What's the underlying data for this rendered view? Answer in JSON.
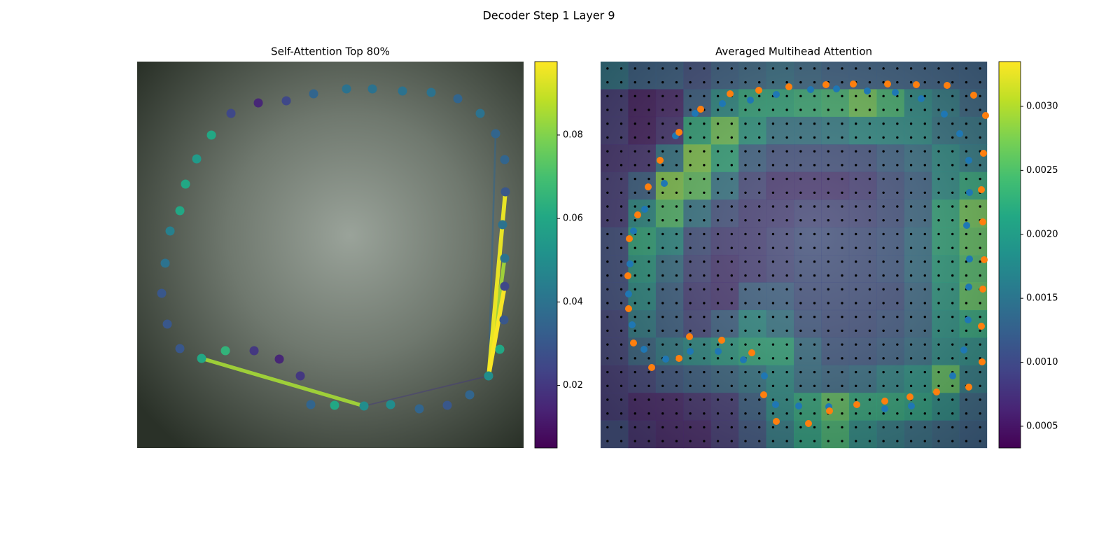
{
  "title": "Decoder Step 1 Layer 9",
  "chart_data": [
    {
      "type": "scatter",
      "title": "Self-Attention Top 80%",
      "xlim": [
        0,
        552
      ],
      "ylim": [
        552,
        0
      ],
      "x": [
        106,
        134,
        173,
        213,
        252,
        299,
        336,
        379,
        420,
        458,
        490,
        512,
        525,
        526,
        522,
        525,
        525,
        524,
        518,
        502,
        475,
        443,
        403,
        362,
        324,
        282,
        248,
        233,
        203,
        167,
        126,
        92,
        61,
        43,
        35,
        40,
        47,
        61,
        69,
        85
      ],
      "y": [
        105,
        74,
        59,
        56,
        46,
        39,
        39,
        42,
        44,
        53,
        74,
        103,
        140,
        186,
        233,
        281,
        321,
        369,
        411,
        449,
        476,
        491,
        496,
        490,
        492,
        491,
        490,
        449,
        425,
        413,
        413,
        424,
        410,
        375,
        331,
        288,
        242,
        213,
        175,
        139
      ],
      "values": [
        0.06,
        0.025,
        0.015,
        0.025,
        0.035,
        0.04,
        0.04,
        0.04,
        0.04,
        0.035,
        0.04,
        0.035,
        0.035,
        0.03,
        0.04,
        0.04,
        0.025,
        0.03,
        0.06,
        0.05,
        0.035,
        0.03,
        0.035,
        0.05,
        0.05,
        0.06,
        0.035,
        0.02,
        0.015,
        0.02,
        0.065,
        0.06,
        0.03,
        0.03,
        0.03,
        0.04,
        0.045,
        0.06,
        0.06,
        0.055
      ],
      "links": [
        {
          "x": [
            502,
            512
          ],
          "y": [
            449,
            103
          ],
          "value": 0.035
        },
        {
          "x": [
            324,
            502
          ],
          "y": [
            492,
            449
          ],
          "value": 0.02
        },
        {
          "x": [
            502,
            525
          ],
          "y": [
            449,
            281
          ],
          "value": 0.085
        },
        {
          "x": [
            92,
            324
          ],
          "y": [
            424,
            492
          ],
          "value": 0.085
        },
        {
          "x": [
            502,
            526
          ],
          "y": [
            449,
            186
          ],
          "value": 0.095
        },
        {
          "x": [
            502,
            525
          ],
          "y": [
            449,
            321
          ],
          "value": 0.097
        }
      ],
      "clim": [
        0.005,
        0.0976
      ],
      "cticks": [
        0.02,
        0.04,
        0.06,
        0.08
      ]
    },
    {
      "type": "heatmap",
      "title": "Averaged Multihead Attention",
      "xlim": [
        0,
        552
      ],
      "ylim": [
        552,
        0
      ],
      "z": [
        [
          0.0015,
          0.0012,
          0.0012,
          0.001,
          0.0012,
          0.0013,
          0.0014,
          0.0013,
          0.0012,
          0.0012,
          0.0012,
          0.0012,
          0.0012,
          0.0012
        ],
        [
          0.0008,
          0.0005,
          0.0006,
          0.0012,
          0.0018,
          0.0022,
          0.0022,
          0.0023,
          0.0024,
          0.0027,
          0.0024,
          0.0018,
          0.0016,
          0.0013
        ],
        [
          0.0008,
          0.0005,
          0.0007,
          0.0022,
          0.0027,
          0.002,
          0.0015,
          0.0015,
          0.0016,
          0.0018,
          0.0018,
          0.0018,
          0.0015,
          0.0015
        ],
        [
          0.0007,
          0.0007,
          0.0015,
          0.0028,
          0.0022,
          0.0012,
          0.001,
          0.001,
          0.001,
          0.001,
          0.0012,
          0.0014,
          0.0018,
          0.0016
        ],
        [
          0.0008,
          0.0012,
          0.0028,
          0.0026,
          0.0015,
          0.0009,
          0.0007,
          0.0007,
          0.0007,
          0.0008,
          0.001,
          0.0012,
          0.0018,
          0.0022
        ],
        [
          0.0008,
          0.0018,
          0.0025,
          0.0015,
          0.001,
          0.0008,
          0.0008,
          0.0009,
          0.0009,
          0.0009,
          0.001,
          0.0013,
          0.0022,
          0.0027
        ],
        [
          0.001,
          0.0022,
          0.0018,
          0.001,
          0.0008,
          0.0008,
          0.0009,
          0.001,
          0.001,
          0.001,
          0.0011,
          0.0014,
          0.0022,
          0.0026
        ],
        [
          0.001,
          0.002,
          0.0014,
          0.0009,
          0.0007,
          0.0008,
          0.0009,
          0.001,
          0.001,
          0.001,
          0.0011,
          0.0014,
          0.0021,
          0.0025
        ],
        [
          0.001,
          0.0018,
          0.0012,
          0.0008,
          0.0007,
          0.0012,
          0.0012,
          0.001,
          0.001,
          0.001,
          0.001,
          0.0013,
          0.002,
          0.0026
        ],
        [
          0.0009,
          0.0016,
          0.0012,
          0.0009,
          0.0012,
          0.0018,
          0.0015,
          0.0011,
          0.001,
          0.001,
          0.0011,
          0.0013,
          0.0019,
          0.0022
        ],
        [
          0.0009,
          0.0013,
          0.0016,
          0.0018,
          0.002,
          0.0022,
          0.0022,
          0.0014,
          0.0011,
          0.0011,
          0.0012,
          0.0014,
          0.0018,
          0.0018
        ],
        [
          0.0008,
          0.0009,
          0.0011,
          0.0012,
          0.0013,
          0.0015,
          0.0018,
          0.0014,
          0.0013,
          0.0014,
          0.0017,
          0.0019,
          0.0026,
          0.0016
        ],
        [
          0.0008,
          0.0006,
          0.0006,
          0.0007,
          0.0008,
          0.0012,
          0.0018,
          0.0022,
          0.0026,
          0.0022,
          0.0022,
          0.0021,
          0.0018,
          0.0013
        ],
        [
          0.001,
          0.0007,
          0.0006,
          0.0006,
          0.0008,
          0.0011,
          0.0016,
          0.0021,
          0.0024,
          0.0018,
          0.0016,
          0.0014,
          0.0013,
          0.0012
        ]
      ],
      "series": [
        {
          "color": "#1f77b4",
          "x": [
            174,
            214,
            251,
            300,
            337,
            381,
            421,
            458,
            491,
            513,
            526,
            527,
            523,
            527,
            526,
            525,
            519,
            503,
            444,
            406,
            366,
            326,
            283,
            250,
            234,
            204,
            168,
            128,
            93,
            62,
            45,
            40,
            42,
            47,
            63,
            91,
            107,
            135
          ],
          "y": [
            60,
            55,
            47,
            40,
            39,
            42,
            44,
            53,
            75,
            103,
            141,
            187,
            234,
            282,
            322,
            369,
            412,
            449,
            492,
            496,
            490,
            493,
            492,
            490,
            449,
            426,
            414,
            414,
            425,
            411,
            376,
            332,
            289,
            242,
            211,
            174,
            106,
            74
          ]
        },
        {
          "color": "#ff7f0e",
          "x": [
            185,
            226,
            269,
            322,
            361,
            410,
            451,
            495,
            533,
            550,
            547,
            544,
            546,
            548,
            546,
            544,
            545,
            526,
            480,
            442,
            406,
            366,
            327,
            297,
            251,
            233,
            216,
            173,
            127,
            112,
            73,
            47,
            40,
            39,
            41,
            53,
            68,
            85,
            112,
            143
          ],
          "y": [
            46,
            41,
            36,
            33,
            32,
            32,
            33,
            34,
            48,
            77,
            131,
            183,
            229,
            283,
            325,
            378,
            429,
            465,
            472,
            479,
            485,
            490,
            499,
            517,
            514,
            476,
            416,
            398,
            393,
            424,
            437,
            402,
            353,
            306,
            253,
            219,
            179,
            141,
            101,
            68
          ]
        }
      ],
      "clim": [
        0.00033,
        0.00335
      ],
      "cticks": [
        {
          "value": 0.0005,
          "label": "0.0005"
        },
        {
          "value": 0.001,
          "label": "0.0010"
        },
        {
          "value": 0.0015,
          "label": "0.0015"
        },
        {
          "value": 0.002,
          "label": "0.0020"
        },
        {
          "value": 0.0025,
          "label": "0.0025"
        },
        {
          "value": 0.003,
          "label": "0.0030"
        }
      ]
    }
  ]
}
